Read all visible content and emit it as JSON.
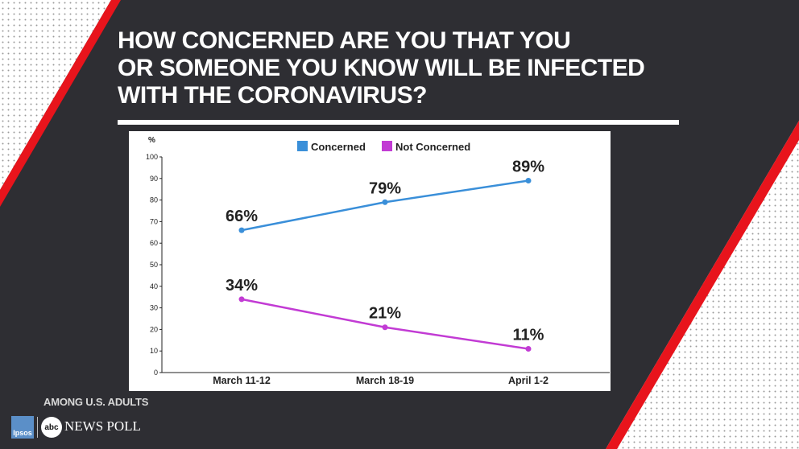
{
  "header": {
    "title_lines": [
      "HOW CONCERNED ARE YOU THAT YOU",
      "OR  SOMEONE YOU KNOW WILL BE INFECTED",
      "WITH THE CORONAVIRUS?"
    ]
  },
  "chart_data": {
    "type": "line",
    "title": "HOW CONCERNED ARE YOU THAT YOU OR  SOMEONE YOU KNOW WILL BE INFECTED WITH THE CORONAVIRUS?",
    "ylabel": "%",
    "xlabel": "",
    "ylim": [
      0,
      100
    ],
    "yticks": [
      0,
      10,
      20,
      30,
      40,
      50,
      60,
      70,
      80,
      90,
      100
    ],
    "categories": [
      "March 11-12",
      "March 18-19",
      "April 1-2"
    ],
    "legend_position": "top-center",
    "grid": false,
    "series": [
      {
        "name": "Concerned",
        "color": "#3a8fd9",
        "values": [
          66,
          79,
          89
        ],
        "labels": [
          "66%",
          "79%",
          "89%"
        ]
      },
      {
        "name": "Not Concerned",
        "color": "#c23bd4",
        "values": [
          34,
          21,
          11
        ],
        "labels": [
          "34%",
          "21%",
          "11%"
        ]
      }
    ]
  },
  "footer": {
    "note": "AMONG U.S. ADULTS",
    "ipsos_logo": "Ipsos",
    "abc_logo": "abc",
    "poll_label": "NEWS POLL"
  },
  "colors": {
    "background": "#2e2e33",
    "accent_red": "#e8141c",
    "panel": "#ffffff"
  }
}
